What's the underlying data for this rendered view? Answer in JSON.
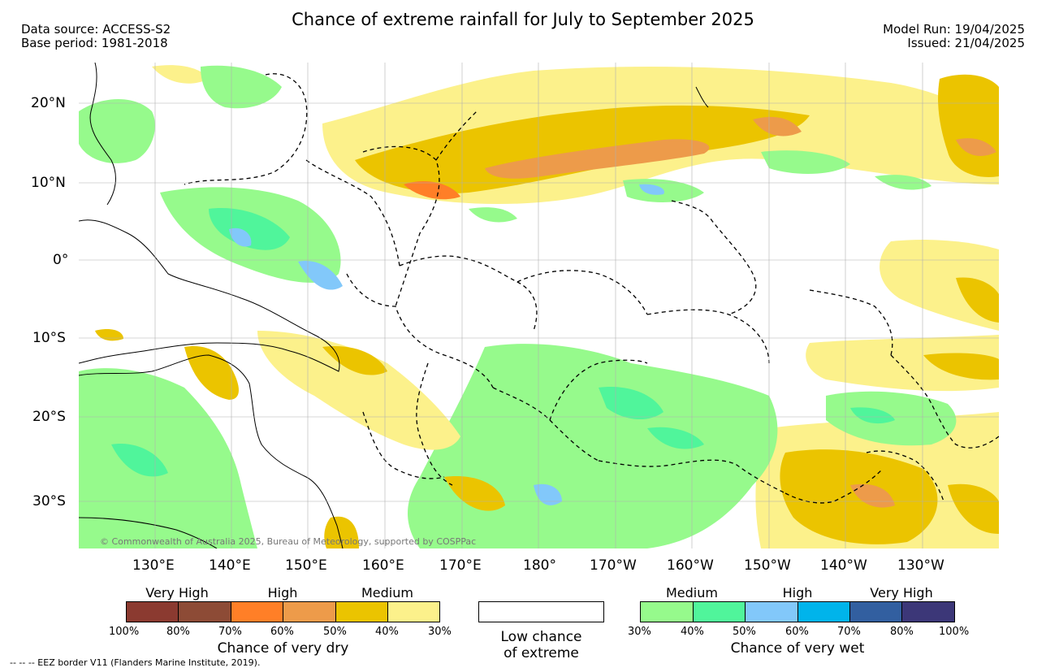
{
  "title": "Chance of extreme rainfall for July to September 2025",
  "header": {
    "data_source": "Data source: ACCESS-S2",
    "base_period": "Base period: 1981-2018",
    "model_run": "Model Run: 19/04/2025",
    "issued": "Issued: 21/04/2025"
  },
  "map": {
    "lat_labels": [
      "20°N",
      "10°N",
      "0°",
      "10°S",
      "20°S",
      "30°S"
    ],
    "lon_labels": [
      "130°E",
      "140°E",
      "150°E",
      "160°E",
      "170°E",
      "180°",
      "170°W",
      "160°W",
      "150°W",
      "140°W",
      "130°W"
    ],
    "credit": "© Commonwealth of Australia 2025, Bureau of Meteorology, supported by COSPPac"
  },
  "legend": {
    "dry": {
      "group_labels": [
        "Very High",
        "High",
        "Medium"
      ],
      "colors": [
        "#8b3a30",
        "#8d4b36",
        "#ff7f27",
        "#ed9b4a",
        "#ebc400",
        "#fcf18b"
      ],
      "ticks": [
        "100%",
        "80%",
        "70%",
        "60%",
        "50%",
        "40%",
        "30%"
      ],
      "title": "Chance of very dry"
    },
    "low": {
      "color": "#ffffff",
      "line1": "Low chance",
      "line2": "of extreme"
    },
    "wet": {
      "group_labels": [
        "Medium",
        "High",
        "Very High"
      ],
      "colors": [
        "#96fa8c",
        "#50f59b",
        "#82c8fa",
        "#00b4eb",
        "#325fa0",
        "#3c3778"
      ],
      "ticks": [
        "30%",
        "40%",
        "50%",
        "60%",
        "70%",
        "80%",
        "100%"
      ],
      "title": "Chance of very wet"
    }
  },
  "footnote": "-- -- -- EEZ border V11 (Flanders Marine Institute, 2019)."
}
